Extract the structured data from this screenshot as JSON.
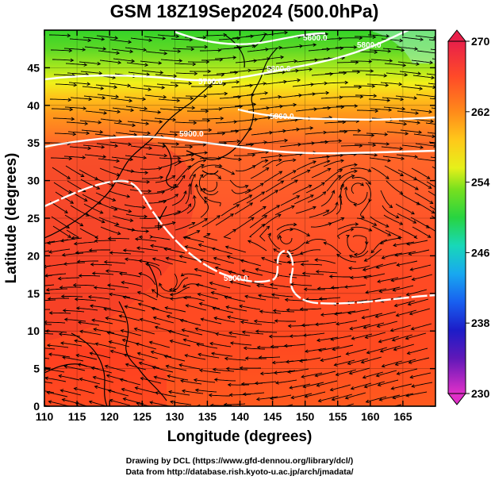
{
  "title": "GSM 18Z19Sep2024 (500.0hPa)",
  "xlabel": "Longitude (degrees)",
  "ylabel": "Latitude  (degrees)",
  "x_ticks": [
    "110",
    "115",
    "120",
    "125",
    "130",
    "135",
    "140",
    "145",
    "150",
    "155",
    "160",
    "165"
  ],
  "y_ticks": [
    "0",
    "5",
    "10",
    "15",
    "20",
    "25",
    "30",
    "35",
    "40",
    "45"
  ],
  "colorbar": {
    "ticks": [
      "270",
      "262",
      "254",
      "246",
      "238",
      "230"
    ],
    "colors": [
      "#e0004a",
      "#ff3030",
      "#ff7a1a",
      "#ffb31a",
      "#ffe61a",
      "#c8f01a",
      "#4cdc28",
      "#18d8b0",
      "#18a8f0",
      "#1860f0",
      "#2828c8",
      "#6018b8",
      "#c018c0",
      "#ff40c0"
    ]
  },
  "contour_labels": [
    "5600.0",
    "5700.0",
    "5800.0",
    "5900.0",
    "5800.0",
    "5900.0",
    "5800.0"
  ],
  "credits": [
    "Drawing by DCL (https://www.gfd-dennou.org/library/dcl/)",
    "Data from http://database.rish.kyoto-u.ac.jp/arch/jmadata/"
  ],
  "chart_data": {
    "type": "heatmap",
    "title": "GSM 18Z19Sep2024 (500.0hPa)",
    "xlabel": "Longitude (degrees)",
    "ylabel": "Latitude  (degrees)",
    "xlim": [
      110,
      170
    ],
    "ylim": [
      0,
      50
    ],
    "color_scale": {
      "min": 230,
      "max": 270,
      "ticks": [
        270,
        262,
        254,
        246,
        238,
        230
      ]
    },
    "contour_levels": [
      5600,
      5700,
      5800,
      5900
    ],
    "overlays": [
      "streamlines",
      "coastlines",
      "geopotential height contours"
    ]
  }
}
